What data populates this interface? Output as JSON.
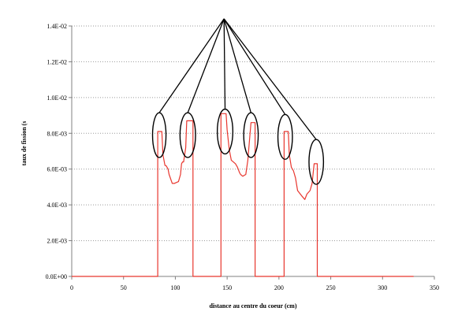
{
  "chart_data": {
    "type": "line",
    "title": "",
    "xlabel": "distance au centre du coeur (cm)",
    "ylabel": "taux de fission (s",
    "xlim": [
      0,
      350
    ],
    "ylim": [
      0,
      0.014
    ],
    "x_ticks": [
      "0",
      "50",
      "100",
      "150",
      "200",
      "250",
      "300",
      "350"
    ],
    "y_ticks": [
      "0.0E+00",
      "2.0E-03",
      "4.0E-03",
      "6.0E-03",
      "8.0E-03",
      "1.0E-02",
      "1.2E-02",
      "1.4E-02"
    ],
    "grid": "horizontal dotted",
    "series": [
      {
        "color": "#e8362e",
        "x": [
          0,
          83,
          83,
          84,
          87,
          88,
          90,
          91,
          93,
          94,
          97,
          99,
          103,
          105,
          106,
          107,
          108,
          110,
          111,
          113,
          117,
          117,
          144,
          144,
          146,
          149,
          150,
          152,
          154,
          158,
          160,
          162,
          163,
          165,
          168,
          170,
          171,
          173,
          176,
          177,
          177,
          205,
          205,
          207,
          209,
          210,
          212,
          214,
          216,
          218,
          222,
          225,
          227,
          230,
          232,
          234,
          236,
          237,
          237,
          330
        ],
        "y": [
          0,
          0,
          0.0081,
          0.0081,
          0.0081,
          0.0068,
          0.0062,
          0.0062,
          0.006,
          0.0057,
          0.0052,
          0.0052,
          0.0053,
          0.0057,
          0.0063,
          0.0064,
          0.0064,
          0.0072,
          0.0087,
          0.0087,
          0.0087,
          0,
          0,
          0.0091,
          0.0091,
          0.0091,
          0.0082,
          0.0071,
          0.0065,
          0.0063,
          0.0061,
          0.0058,
          0.0057,
          0.0056,
          0.0057,
          0.0065,
          0.0072,
          0.0086,
          0.0086,
          0.0086,
          0,
          0,
          0.0081,
          0.0081,
          0.0081,
          0.0068,
          0.0061,
          0.0059,
          0.0055,
          0.0048,
          0.0045,
          0.0043,
          0.0046,
          0.0048,
          0.0052,
          0.0063,
          0.0063,
          0.0063,
          0,
          0
        ]
      }
    ],
    "annotation": {
      "type": "callout circles",
      "apex": [
        147,
        0.0144
      ],
      "circles": [
        {
          "cx": 84.5,
          "cy": 0.0079,
          "rx": 6.5,
          "ry": 0.00125
        },
        {
          "cx": 112,
          "cy": 0.0079,
          "rx": 7.5,
          "ry": 0.00125
        },
        {
          "cx": 148,
          "cy": 0.0081,
          "rx": 7.5,
          "ry": 0.00125
        },
        {
          "cx": 173,
          "cy": 0.0079,
          "rx": 7,
          "ry": 0.00125
        },
        {
          "cx": 206,
          "cy": 0.0078,
          "rx": 7,
          "ry": 0.00125
        },
        {
          "cx": 236,
          "cy": 0.0064,
          "rx": 7,
          "ry": 0.00125
        }
      ]
    }
  }
}
